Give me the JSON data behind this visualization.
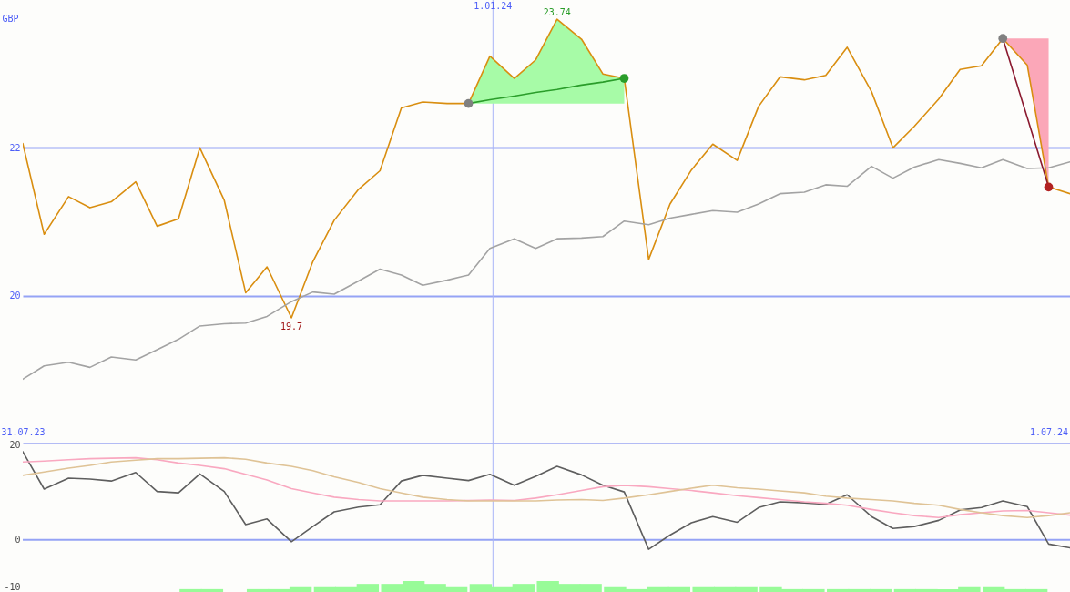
{
  "chart_data": [
    {
      "type": "line",
      "ylabel": "GBP",
      "x": [
        "2023-07-31",
        "2023-08-07",
        "2023-08-15",
        "2023-08-22",
        "2023-08-29",
        "2023-09-06",
        "2023-09-13",
        "2023-09-20",
        "2023-09-27",
        "2023-10-05",
        "2023-10-12",
        "2023-10-19",
        "2023-10-27",
        "2023-11-03",
        "2023-11-10",
        "2023-11-18",
        "2023-11-25",
        "2023-12-02",
        "2023-12-09",
        "2023-12-17",
        "2023-12-24",
        "2023-12-31",
        "2024-01-08",
        "2024-01-15",
        "2024-01-22",
        "2024-01-30",
        "2024-02-06",
        "2024-02-13",
        "2024-02-21",
        "2024-02-28",
        "2024-03-06",
        "2024-03-13",
        "2024-03-21",
        "2024-03-28",
        "2024-04-04",
        "2024-04-12",
        "2024-04-19",
        "2024-04-26",
        "2024-05-04",
        "2024-05-11",
        "2024-05-18",
        "2024-05-26",
        "2024-06-02",
        "2024-06-09",
        "2024-06-16",
        "2024-06-24",
        "2024-07-01",
        "2024-07-08"
      ],
      "series": [
        {
          "color": "#d98e10",
          "values": [
            22.06,
            20.83,
            21.34,
            21.19,
            21.27,
            21.54,
            20.94,
            21.04,
            22.0,
            21.29,
            20.04,
            20.39,
            19.7,
            20.46,
            21.02,
            21.44,
            21.69,
            22.54,
            22.62,
            22.6,
            22.6,
            23.24,
            22.94,
            23.19,
            23.74,
            23.47,
            23.0,
            22.94,
            20.49,
            21.24,
            21.7,
            22.05,
            21.83,
            22.56,
            22.96,
            22.92,
            22.98,
            23.36,
            22.76,
            22.0,
            22.29,
            22.66,
            23.06,
            23.11,
            23.48,
            23.12,
            21.47,
            21.38
          ]
        },
        {
          "color": "#a3a3a3",
          "values": [
            18.87,
            19.05,
            19.1,
            19.03,
            19.17,
            19.13,
            19.27,
            19.41,
            19.59,
            19.62,
            19.63,
            19.72,
            19.92,
            20.05,
            20.02,
            20.2,
            20.36,
            20.28,
            20.14,
            20.21,
            20.28,
            20.64,
            20.77,
            20.64,
            20.77,
            20.78,
            20.8,
            21.01,
            20.96,
            21.05,
            21.1,
            21.15,
            21.13,
            21.24,
            21.38,
            21.4,
            21.5,
            21.48,
            21.75,
            21.59,
            21.74,
            21.84,
            21.79,
            21.73,
            21.84,
            21.72,
            21.73,
            21.81
          ]
        },
        {
          "color": "#2a9d2a",
          "x": [
            "2023-12-24",
            "2023-12-31",
            "2024-01-08",
            "2024-01-15",
            "2024-01-22",
            "2024-01-30",
            "2024-02-06",
            "2024-02-13"
          ],
          "values": [
            22.6,
            22.65,
            22.7,
            22.75,
            22.79,
            22.85,
            22.89,
            22.94
          ],
          "lower": [
            22.6,
            22.6,
            22.6,
            22.6,
            22.6,
            22.6,
            22.6,
            22.6
          ],
          "upper": [
            22.6,
            23.24,
            22.94,
            23.19,
            23.74,
            23.47,
            23.0,
            22.94
          ]
        },
        {
          "color": "#8b1a30",
          "x": [
            "2024-06-16",
            "2024-06-24",
            "2024-07-01"
          ],
          "values": [
            23.48,
            22.41,
            21.47
          ],
          "lower": [
            23.48,
            23.12,
            21.47
          ],
          "upper": [
            23.48,
            23.48,
            23.48
          ]
        },
        {
          "type": "scatter",
          "color": "#808080",
          "x": [
            "2023-12-24",
            "2024-06-16"
          ],
          "values": [
            22.6,
            23.48
          ],
          "marker": "circle"
        },
        {
          "type": "scatter",
          "color": "#2a9d2a",
          "x": [
            "2024-02-13"
          ],
          "values": [
            22.94
          ],
          "marker": "circle"
        },
        {
          "type": "scatter",
          "color": "#b22222",
          "x": [
            "2024-07-01"
          ],
          "values": [
            21.47
          ],
          "marker": "circle"
        }
      ],
      "xlim": [
        "2023-07-31",
        "2024-07-08"
      ],
      "xticks": [
        {
          "value": "2023-07-31",
          "label": "31.07.23"
        },
        {
          "value": "2024-07-01",
          "label": "1.07.24"
        }
      ],
      "ylim": [
        18,
        24
      ],
      "yticks": [
        20,
        22
      ],
      "grid": "y",
      "ref_lines": [
        {
          "axis": "x",
          "value": "2024-01-01",
          "label": "1.01.24",
          "color": "#a9b5f7"
        }
      ],
      "annotations": [
        {
          "text": "23.74",
          "x": "2024-01-22",
          "y": 23.74
        },
        {
          "text": "19.7",
          "x": "2023-10-27",
          "y": 19.7
        }
      ]
    },
    {
      "type": "line",
      "x": [
        "2023-07-31",
        "2023-08-07",
        "2023-08-15",
        "2023-08-22",
        "2023-08-29",
        "2023-09-06",
        "2023-09-13",
        "2023-09-20",
        "2023-09-27",
        "2023-10-05",
        "2023-10-12",
        "2023-10-19",
        "2023-10-27",
        "2023-11-03",
        "2023-11-10",
        "2023-11-18",
        "2023-11-25",
        "2023-12-02",
        "2023-12-09",
        "2023-12-17",
        "2023-12-24",
        "2023-12-31",
        "2024-01-08",
        "2024-01-15",
        "2024-01-22",
        "2024-01-30",
        "2024-02-06",
        "2024-02-13",
        "2024-02-21",
        "2024-02-28",
        "2024-03-06",
        "2024-03-13",
        "2024-03-21",
        "2024-03-28",
        "2024-04-04",
        "2024-04-12",
        "2024-04-19",
        "2024-04-26",
        "2024-05-04",
        "2024-05-11",
        "2024-05-18",
        "2024-05-26",
        "2024-06-02",
        "2024-06-09",
        "2024-06-16",
        "2024-06-24",
        "2024-07-01",
        "2024-07-08"
      ],
      "series": [
        {
          "type": "bar",
          "color": "#98fb98",
          "x": [
            "2023-09-24",
            "2023-10-01",
            "2023-10-16",
            "2023-10-23",
            "2023-10-30",
            "2023-11-07",
            "2023-11-14",
            "2023-11-21",
            "2023-11-29",
            "2023-12-06",
            "2023-12-13",
            "2023-12-20",
            "2023-12-28",
            "2024-01-04",
            "2024-01-11",
            "2024-01-19",
            "2024-01-26",
            "2024-02-02",
            "2024-02-10",
            "2024-02-17",
            "2024-02-24",
            "2024-03-02",
            "2024-03-10",
            "2024-03-17",
            "2024-03-24",
            "2024-04-01",
            "2024-04-08",
            "2024-04-15",
            "2024-04-23",
            "2024-04-30",
            "2024-05-07",
            "2024-05-15",
            "2024-05-22",
            "2024-05-29",
            "2024-06-05",
            "2024-06-13",
            "2024-06-20",
            "2024-06-27"
          ],
          "values": [
            0.6,
            0.6,
            0.6,
            0.6,
            1.2,
            1.2,
            1.2,
            1.7,
            1.7,
            2.3,
            1.7,
            1.2,
            1.7,
            1.2,
            1.7,
            2.3,
            1.7,
            1.7,
            1.2,
            0.6,
            1.2,
            1.2,
            1.2,
            1.2,
            1.2,
            1.2,
            0.6,
            0.6,
            0.6,
            0.6,
            0.6,
            0.6,
            0.6,
            0.6,
            1.2,
            1.2,
            0.6,
            0.6
          ],
          "base": [
            -11,
            -11,
            -11,
            -11,
            -11,
            -11,
            -11,
            -11,
            -11,
            -11,
            -11,
            -11,
            -11,
            -11,
            -11,
            -11,
            -11,
            -11,
            -11,
            -11,
            -11,
            -11,
            -11,
            -11,
            -11,
            -11,
            -11,
            -11,
            -11,
            -11,
            -11,
            -11,
            -11,
            -11,
            -11,
            -11,
            -11,
            -11
          ]
        },
        {
          "color": "#5e5e5e",
          "values": [
            18.6,
            10.7,
            13.0,
            12.8,
            12.4,
            14.2,
            10.2,
            9.9,
            13.9,
            10.2,
            3.2,
            4.4,
            -0.4,
            2.8,
            5.9,
            6.9,
            7.4,
            12.4,
            13.6,
            13.0,
            12.5,
            13.8,
            11.5,
            13.4,
            15.5,
            13.7,
            11.5,
            10.1,
            -2.0,
            1.0,
            3.6,
            4.9,
            3.7,
            6.8,
            8.0,
            7.8,
            7.5,
            9.5,
            4.9,
            2.4,
            2.8,
            4.1,
            6.3,
            6.8,
            8.2,
            7.0,
            -0.9,
            -1.7
          ]
        },
        {
          "color": "#f9a8c0",
          "values": [
            16.4,
            16.6,
            16.9,
            17.1,
            17.2,
            17.3,
            16.9,
            16.2,
            15.7,
            15.0,
            13.8,
            12.6,
            10.8,
            9.9,
            9.0,
            8.5,
            8.2,
            8.2,
            8.2,
            8.2,
            8.3,
            8.4,
            8.3,
            8.8,
            9.5,
            10.4,
            11.2,
            11.5,
            11.2,
            10.8,
            10.4,
            9.9,
            9.3,
            8.9,
            8.5,
            8.0,
            7.7,
            7.3,
            6.4,
            5.7,
            5.1,
            4.7,
            5.3,
            5.7,
            6.1,
            6.2,
            5.7,
            5.2
          ]
        },
        {
          "color": "#dfc396",
          "values": [
            13.6,
            14.3,
            15.1,
            15.7,
            16.4,
            16.8,
            17.1,
            17.1,
            17.2,
            17.3,
            17.0,
            16.2,
            15.5,
            14.6,
            13.3,
            12.1,
            10.8,
            9.9,
            9.0,
            8.5,
            8.2,
            8.2,
            8.2,
            8.2,
            8.4,
            8.5,
            8.3,
            8.8,
            9.5,
            10.2,
            10.9,
            11.5,
            11.0,
            10.7,
            10.3,
            9.9,
            9.2,
            8.8,
            8.5,
            8.2,
            7.7,
            7.3,
            6.4,
            5.7,
            5.1,
            4.7,
            5.1,
            5.7
          ]
        }
      ],
      "xlim": [
        "2023-07-31",
        "2024-07-08"
      ],
      "ylim": [
        -11,
        20.3
      ],
      "yticks": [
        20,
        0,
        -10
      ],
      "tick_labels": "y",
      "ref_lines": [
        {
          "axis": "y",
          "value": 0,
          "color": "#95a3f5"
        },
        {
          "axis": "x",
          "value": "2024-01-01",
          "color": "#a9b5f7"
        }
      ]
    }
  ]
}
